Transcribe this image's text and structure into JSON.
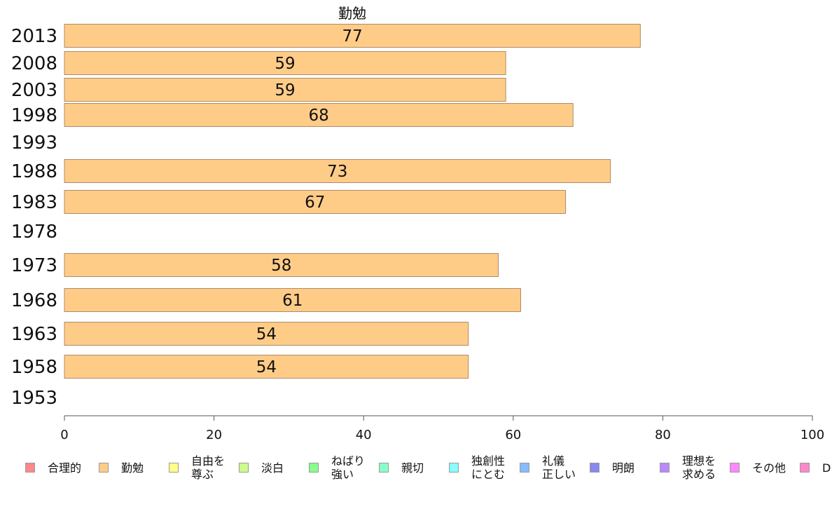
{
  "chart_data": {
    "type": "bar",
    "orientation": "horizontal",
    "title": "勤勉",
    "xlabel": "",
    "ylabel": "",
    "xlim": [
      0,
      100
    ],
    "x_ticks": [
      "0",
      "20",
      "40",
      "60",
      "80",
      "100"
    ],
    "categories": [
      "2013",
      "2008",
      "2003",
      "1998",
      "1993",
      "1988",
      "1983",
      "1978",
      "1973",
      "1968",
      "1963",
      "1958",
      "1953"
    ],
    "series": [
      {
        "name": "勤勉",
        "color": "#ffcc88",
        "values": [
          77,
          59,
          59,
          68,
          null,
          73,
          67,
          null,
          58,
          61,
          54,
          54,
          null
        ],
        "value_labels": [
          "77",
          "59",
          "59",
          "68",
          "",
          "73",
          "67",
          "",
          "58",
          "61",
          "54",
          "54",
          ""
        ]
      }
    ],
    "grid": false,
    "legend_position": "bottom"
  },
  "legend": [
    {
      "label": "合理的",
      "color": "#ff8888"
    },
    {
      "label": "勤勉",
      "color": "#ffcc88"
    },
    {
      "label": "自由を\n尊ぶ",
      "color": "#ffff88"
    },
    {
      "label": "淡白",
      "color": "#ccff88"
    },
    {
      "label": "ねばり\n強い",
      "color": "#88ff88"
    },
    {
      "label": "親切",
      "color": "#88ffcc"
    },
    {
      "label": "独創性\nにとむ",
      "color": "#88ffff"
    },
    {
      "label": "礼儀\n正しい",
      "color": "#88bbff"
    },
    {
      "label": "明朗",
      "color": "#8888ee"
    },
    {
      "label": "理想を\n求める",
      "color": "#bb88ff"
    },
    {
      "label": "その他",
      "color": "#ff88ff"
    },
    {
      "label": "D",
      "color": "#ff88cc"
    }
  ]
}
